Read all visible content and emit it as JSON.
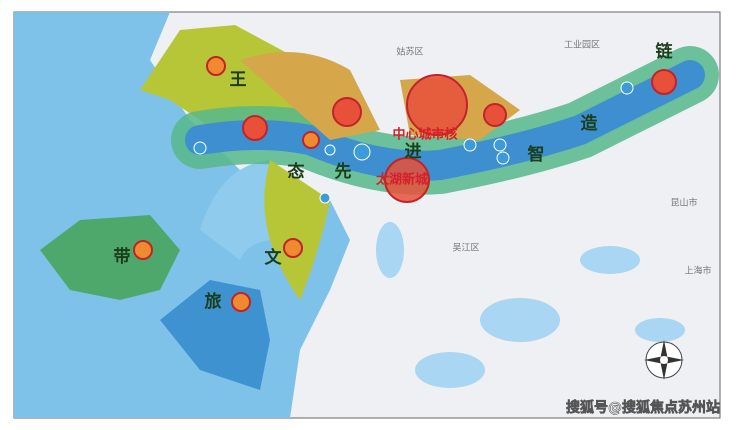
{
  "map": {
    "belt_labels": [
      "王",
      "态",
      "先",
      "进",
      "智",
      "造",
      "链",
      "带",
      "旅",
      "文"
    ],
    "core_labels": [
      "中心城市核",
      "太湖新城"
    ],
    "district_labels": [
      "姑苏区",
      "工业园区",
      "吴江区",
      "昆山市",
      "上海市"
    ],
    "watermark": "搜狐号@搜狐焦点苏州站"
  }
}
